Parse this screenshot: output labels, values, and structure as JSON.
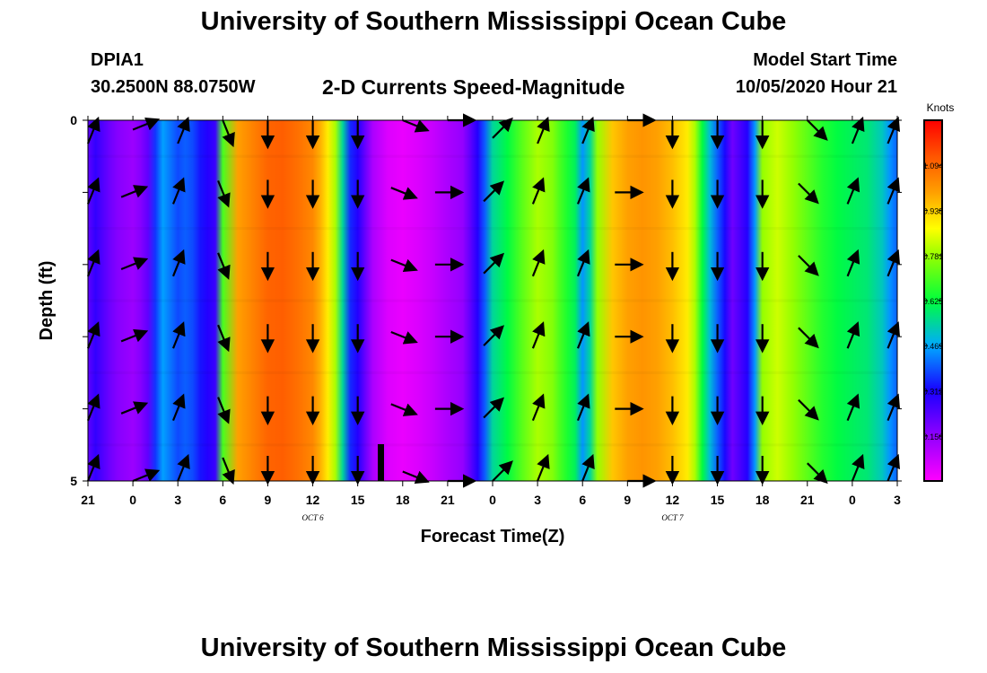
{
  "header": {
    "title_top": "University of Southern Mississippi Ocean Cube",
    "title_bottom": "University of Southern Mississippi Ocean Cube",
    "station_id": "DPIA1",
    "station_coords": "30.2500N 88.0750W",
    "chart_title": "2-D Currents Speed-Magnitude",
    "model_start_label": "Model Start Time",
    "model_start_value": "10/05/2020 Hour 21"
  },
  "chart_data": {
    "type": "heatmap",
    "title": "2-D Currents Speed-Magnitude",
    "xlabel": "Forecast Time(Z)",
    "ylabel": "Depth (ft)",
    "x_tick_labels": [
      "21",
      "0",
      "3",
      "6",
      "9",
      "12",
      "15",
      "18",
      "21",
      "0",
      "3",
      "6",
      "9",
      "12",
      "15",
      "18",
      "21",
      "0",
      "3"
    ],
    "date_labels": [
      {
        "label": "OCT 6",
        "hour": 15
      },
      {
        "label": "OCT 7",
        "hour": 39
      }
    ],
    "xlim_hours": [
      0,
      54
    ],
    "y_tick_labels": [
      "0",
      "5"
    ],
    "ylim_ft": [
      0,
      5
    ],
    "y_reversed": true,
    "colorbar": {
      "unit": "Knots",
      "tick_labels": [
        "1.094",
        "0.938",
        "0.781",
        "0.625",
        "0.469",
        "0.312",
        "0.156"
      ],
      "tick_values": [
        1.094,
        0.938,
        0.781,
        0.625,
        0.469,
        0.312,
        0.156
      ],
      "range": [
        0.0,
        1.25
      ]
    },
    "speed_by_hour": [
      {
        "hour": 0,
        "v": 0.22
      },
      {
        "hour": 0.5,
        "v": 0.28
      },
      {
        "hour": 1,
        "v": 0.24
      },
      {
        "hour": 1.5,
        "v": 0.2
      },
      {
        "hour": 2,
        "v": 0.17
      },
      {
        "hour": 3,
        "v": 0.14
      },
      {
        "hour": 3.5,
        "v": 0.17
      },
      {
        "hour": 4,
        "v": 0.22
      },
      {
        "hour": 4.5,
        "v": 0.36
      },
      {
        "hour": 5,
        "v": 0.46
      },
      {
        "hour": 5.5,
        "v": 0.42
      },
      {
        "hour": 6,
        "v": 0.38
      },
      {
        "hour": 6.5,
        "v": 0.4
      },
      {
        "hour": 7,
        "v": 0.38
      },
      {
        "hour": 7.5,
        "v": 0.33
      },
      {
        "hour": 8,
        "v": 0.3
      },
      {
        "hour": 8.5,
        "v": 0.27
      },
      {
        "hour": 9,
        "v": 0.7
      },
      {
        "hour": 10,
        "v": 1.0
      },
      {
        "hour": 11,
        "v": 1.05
      },
      {
        "hour": 12,
        "v": 1.1
      },
      {
        "hour": 13,
        "v": 1.11
      },
      {
        "hour": 14,
        "v": 1.08
      },
      {
        "hour": 15,
        "v": 1.04
      },
      {
        "hour": 15.5,
        "v": 0.98
      },
      {
        "hour": 16,
        "v": 0.9
      },
      {
        "hour": 16.5,
        "v": 0.8
      },
      {
        "hour": 17,
        "v": 0.55
      },
      {
        "hour": 17.5,
        "v": 0.35
      },
      {
        "hour": 18,
        "v": 0.3
      },
      {
        "hour": 19,
        "v": 0.12
      },
      {
        "hour": 20,
        "v": 0.05
      },
      {
        "hour": 21,
        "v": 0.03
      },
      {
        "hour": 22,
        "v": 0.05
      },
      {
        "hour": 23,
        "v": 0.08
      },
      {
        "hour": 24,
        "v": 0.12
      },
      {
        "hour": 25,
        "v": 0.15
      },
      {
        "hour": 25.5,
        "v": 0.22
      },
      {
        "hour": 26,
        "v": 0.3
      },
      {
        "hour": 26.5,
        "v": 0.4
      },
      {
        "hour": 27,
        "v": 0.55
      },
      {
        "hour": 28,
        "v": 0.62
      },
      {
        "hour": 29,
        "v": 0.72
      },
      {
        "hour": 30,
        "v": 0.8
      },
      {
        "hour": 31,
        "v": 0.76
      },
      {
        "hour": 31.5,
        "v": 0.7
      },
      {
        "hour": 32,
        "v": 0.65
      },
      {
        "hour": 32.5,
        "v": 0.6
      },
      {
        "hour": 33,
        "v": 0.45
      },
      {
        "hour": 33.5,
        "v": 0.55
      },
      {
        "hour": 34,
        "v": 0.78
      },
      {
        "hour": 35,
        "v": 0.95
      },
      {
        "hour": 36,
        "v": 1.0
      },
      {
        "hour": 37,
        "v": 1.02
      },
      {
        "hour": 38,
        "v": 1.0
      },
      {
        "hour": 39,
        "v": 0.96
      },
      {
        "hour": 40,
        "v": 0.9
      },
      {
        "hour": 40.5,
        "v": 0.8
      },
      {
        "hour": 41,
        "v": 0.62
      },
      {
        "hour": 41.5,
        "v": 0.5
      },
      {
        "hour": 42,
        "v": 0.4
      },
      {
        "hour": 42.5,
        "v": 0.32
      },
      {
        "hour": 43,
        "v": 0.2
      },
      {
        "hour": 44,
        "v": 0.3
      },
      {
        "hour": 44.5,
        "v": 0.45
      },
      {
        "hour": 45,
        "v": 0.78
      },
      {
        "hour": 46,
        "v": 0.83
      },
      {
        "hour": 47,
        "v": 0.78
      },
      {
        "hour": 48,
        "v": 0.72
      },
      {
        "hour": 49,
        "v": 0.66
      },
      {
        "hour": 50,
        "v": 0.62
      },
      {
        "hour": 51,
        "v": 0.6
      },
      {
        "hour": 52,
        "v": 0.58
      },
      {
        "hour": 53,
        "v": 0.52
      },
      {
        "hour": 53.5,
        "v": 0.45
      },
      {
        "hour": 54,
        "v": 0.4
      }
    ],
    "vector_depths_ft": [
      0,
      1,
      2,
      3,
      4,
      5
    ],
    "vectors": [
      {
        "hour": 0,
        "dir": "NNE"
      },
      {
        "hour": 3,
        "dir": "ENE"
      },
      {
        "hour": 6,
        "dir": "NNE"
      },
      {
        "hour": 9,
        "dir": "SSE"
      },
      {
        "hour": 12,
        "dir": "S"
      },
      {
        "hour": 15,
        "dir": "S"
      },
      {
        "hour": 18,
        "dir": "S"
      },
      {
        "hour": 21,
        "dir": "ESE"
      },
      {
        "hour": 24,
        "dir": "E"
      },
      {
        "hour": 27,
        "dir": "NE"
      },
      {
        "hour": 30,
        "dir": "NNE"
      },
      {
        "hour": 33,
        "dir": "NNE"
      },
      {
        "hour": 36,
        "dir": "E"
      },
      {
        "hour": 39,
        "dir": "S"
      },
      {
        "hour": 42,
        "dir": "S"
      },
      {
        "hour": 45,
        "dir": "S"
      },
      {
        "hour": 48,
        "dir": "SE"
      },
      {
        "hour": 51,
        "dir": "NNE"
      },
      {
        "hour": 54,
        "dir": "NNE"
      }
    ]
  }
}
